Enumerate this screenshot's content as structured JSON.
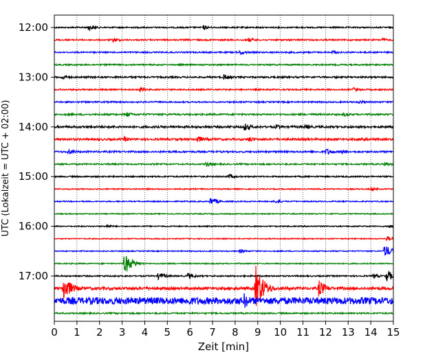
{
  "chart_data": {
    "type": "line",
    "title": "",
    "xlabel": "Zeit  [min]",
    "ylabel": "UTC (Lokalzeit = UTC + 02:00)",
    "xlim": [
      0,
      15
    ],
    "x_ticks": [
      "0",
      "1",
      "2",
      "3",
      "4",
      "5",
      "6",
      "7",
      "8",
      "9",
      "10",
      "11",
      "12",
      "13",
      "14",
      "15"
    ],
    "y_ticks": [
      "12:00",
      "13:00",
      "14:00",
      "15:00",
      "16:00",
      "17:00"
    ],
    "grid": "vertical dotted lines at each minute",
    "trace_interval_min": 15,
    "trace_colors_cycle": [
      "#000000",
      "#ff0000",
      "#0000ff",
      "#008000"
    ],
    "traces": [
      {
        "start": "12:00",
        "color": "#000000",
        "amplitude": 0.1,
        "events": [
          {
            "t": 1.5,
            "amp": 0.45
          },
          {
            "t": 6.6,
            "amp": 0.35
          }
        ]
      },
      {
        "start": "12:15",
        "color": "#ff0000",
        "amplitude": 0.1,
        "events": [
          {
            "t": 2.6,
            "amp": 0.4
          },
          {
            "t": 8.6,
            "amp": 0.35
          },
          {
            "t": 14.5,
            "amp": 0.3
          }
        ]
      },
      {
        "start": "12:30",
        "color": "#0000ff",
        "amplitude": 0.1,
        "events": [
          {
            "t": 8.2,
            "amp": 0.35
          },
          {
            "t": 12.3,
            "amp": 0.3
          }
        ]
      },
      {
        "start": "12:45",
        "color": "#008000",
        "amplitude": 0.1,
        "events": []
      },
      {
        "start": "13:00",
        "color": "#000000",
        "amplitude": 0.12,
        "events": [
          {
            "t": 0.3,
            "amp": 0.4
          },
          {
            "t": 7.5,
            "amp": 0.45
          }
        ]
      },
      {
        "start": "13:15",
        "color": "#ff0000",
        "amplitude": 0.1,
        "events": [
          {
            "t": 3.8,
            "amp": 0.35
          },
          {
            "t": 13.2,
            "amp": 0.35
          }
        ]
      },
      {
        "start": "13:30",
        "color": "#0000ff",
        "amplitude": 0.1,
        "events": [
          {
            "t": 13.5,
            "amp": 0.3
          }
        ]
      },
      {
        "start": "13:45",
        "color": "#008000",
        "amplitude": 0.12,
        "events": [
          {
            "t": 3.2,
            "amp": 0.4
          },
          {
            "t": 12.8,
            "amp": 0.3
          }
        ]
      },
      {
        "start": "14:00",
        "color": "#000000",
        "amplitude": 0.15,
        "events": [
          {
            "t": 8.4,
            "amp": 0.6
          },
          {
            "t": 9.8,
            "amp": 0.4
          },
          {
            "t": 11.1,
            "amp": 0.4
          }
        ]
      },
      {
        "start": "14:15",
        "color": "#ff0000",
        "amplitude": 0.15,
        "events": [
          {
            "t": 3.1,
            "amp": 0.4
          },
          {
            "t": 6.3,
            "amp": 0.6
          },
          {
            "t": 8.6,
            "amp": 0.45
          },
          {
            "t": 13.6,
            "amp": 0.4
          }
        ]
      },
      {
        "start": "14:30",
        "color": "#0000ff",
        "amplitude": 0.12,
        "events": [
          {
            "t": 0.6,
            "amp": 0.45
          },
          {
            "t": 12.0,
            "amp": 0.55
          },
          {
            "t": 12.7,
            "amp": 0.4
          }
        ]
      },
      {
        "start": "14:45",
        "color": "#008000",
        "amplitude": 0.1,
        "events": [
          {
            "t": 6.7,
            "amp": 0.4
          },
          {
            "t": 14.6,
            "amp": 0.35
          }
        ]
      },
      {
        "start": "15:00",
        "color": "#000000",
        "amplitude": 0.1,
        "events": [
          {
            "t": 7.7,
            "amp": 0.4
          }
        ]
      },
      {
        "start": "15:15",
        "color": "#ff0000",
        "amplitude": 0.08,
        "events": [
          {
            "t": 14.0,
            "amp": 0.25
          }
        ]
      },
      {
        "start": "15:30",
        "color": "#0000ff",
        "amplitude": 0.08,
        "events": [
          {
            "t": 6.9,
            "amp": 0.6
          },
          {
            "t": 9.8,
            "amp": 0.3
          }
        ]
      },
      {
        "start": "15:45",
        "color": "#008000",
        "amplitude": 0.07,
        "events": []
      },
      {
        "start": "16:00",
        "color": "#000000",
        "amplitude": 0.08,
        "events": [
          {
            "t": 2.3,
            "amp": 0.3
          },
          {
            "t": 14.8,
            "amp": 0.3
          }
        ]
      },
      {
        "start": "16:15",
        "color": "#ff0000",
        "amplitude": 0.07,
        "events": [
          {
            "t": 14.7,
            "amp": 0.4
          }
        ]
      },
      {
        "start": "16:30",
        "color": "#0000ff",
        "amplitude": 0.07,
        "events": [
          {
            "t": 8.2,
            "amp": 0.3
          },
          {
            "t": 14.6,
            "amp": 1.0
          }
        ]
      },
      {
        "start": "16:45",
        "color": "#008000",
        "amplitude": 0.08,
        "events": [
          {
            "t": 3.1,
            "amp": 1.6
          }
        ]
      },
      {
        "start": "17:00",
        "color": "#000000",
        "amplitude": 0.1,
        "events": [
          {
            "t": 4.6,
            "amp": 0.6
          },
          {
            "t": 5.9,
            "amp": 0.5
          },
          {
            "t": 14.1,
            "amp": 0.4
          },
          {
            "t": 14.7,
            "amp": 0.9
          }
        ]
      },
      {
        "start": "17:15",
        "color": "#ff0000",
        "amplitude": 0.2,
        "events": [
          {
            "t": 0.4,
            "amp": 2.0
          },
          {
            "t": 8.9,
            "amp": 3.6
          },
          {
            "t": 11.7,
            "amp": 1.3
          }
        ]
      },
      {
        "start": "17:30",
        "color": "#0000ff",
        "amplitude": 0.5,
        "events": [
          {
            "t": 5.9,
            "amp": 0.9
          },
          {
            "t": 8.4,
            "amp": 1.2
          }
        ]
      },
      {
        "start": "17:45",
        "color": "#008000",
        "amplitude": 0.1,
        "events": []
      }
    ]
  }
}
